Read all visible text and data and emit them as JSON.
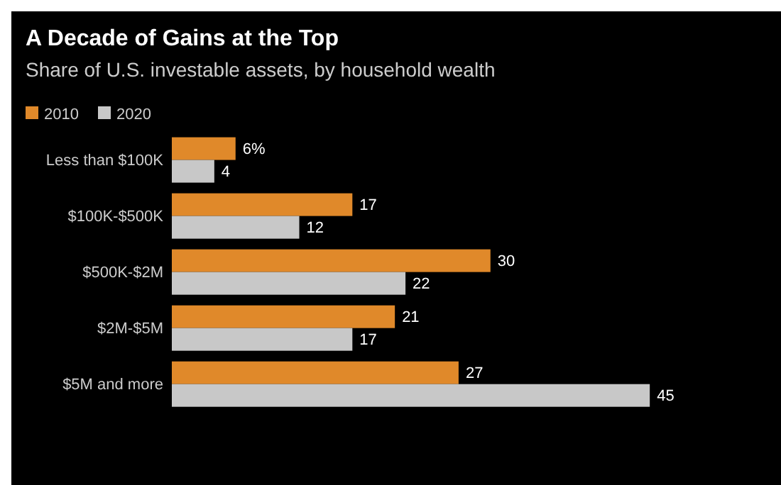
{
  "chart_data": {
    "type": "bar",
    "orientation": "horizontal",
    "title": "A Decade of Gains at the Top",
    "subtitle": "Share of U.S. investable assets, by household wealth",
    "categories": [
      "Less than $100K",
      "$100K-$500K",
      "$500K-$2M",
      "$2M-$5M",
      "$5M and more"
    ],
    "series": [
      {
        "name": "2010",
        "color": "#e0892a",
        "values": [
          6,
          17,
          30,
          21,
          27
        ],
        "value_labels": [
          "6%",
          "17",
          "30",
          "21",
          "27"
        ]
      },
      {
        "name": "2020",
        "color": "#c8c8c8",
        "values": [
          4,
          12,
          22,
          17,
          45
        ],
        "value_labels": [
          "4",
          "12",
          "22",
          "17",
          "45"
        ]
      }
    ],
    "data_labels": true,
    "legend": "top left",
    "grid": false
  }
}
